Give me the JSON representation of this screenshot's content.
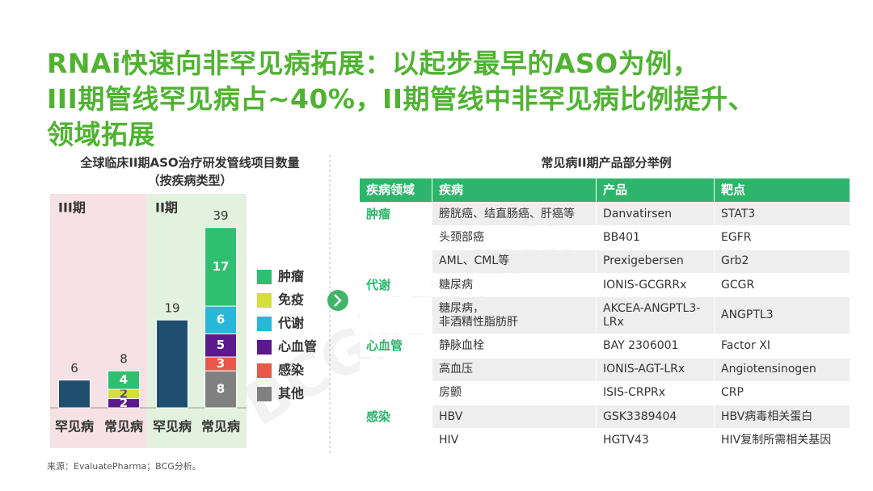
{
  "title_lines": [
    "RNAi快速向非罕见病拓展：以起步最早的ASO为例，",
    "III期管线罕见病占~40%，II期管线中非罕见病比例提升、",
    "领域拓展"
  ],
  "chart_data": {
    "type": "bar",
    "stacked": true,
    "title": "全球临床II期ASO治疗研发管线项目数量",
    "subtitle": "（按疾病类型）",
    "groups": [
      {
        "label": "III期",
        "color": "#f6e1e6"
      },
      {
        "label": "II期",
        "color": "#e3f2df"
      }
    ],
    "categories": [
      "罕见病",
      "常见病",
      "罕见病",
      "常见病"
    ],
    "ylim": [
      0,
      40
    ],
    "totals": [
      6,
      8,
      19,
      39
    ],
    "series": [
      {
        "color": "#1f4e6e",
        "values": [
          6,
          null,
          19,
          null
        ]
      },
      {
        "name": "其他",
        "color": "#808080",
        "values": [
          null,
          null,
          null,
          8
        ]
      },
      {
        "name": "感染",
        "color": "#e8574a",
        "values": [
          null,
          null,
          null,
          3
        ]
      },
      {
        "name": "心血管",
        "color": "#5b1a8c",
        "values": [
          null,
          2,
          null,
          5
        ]
      },
      {
        "name": "免疫",
        "color": "#d6df3a",
        "values": [
          null,
          2,
          null,
          null
        ]
      },
      {
        "name": "代谢",
        "color": "#27b8d8",
        "values": [
          null,
          null,
          null,
          6
        ]
      },
      {
        "name": "肿瘤",
        "color": "#2fbf71",
        "values": [
          null,
          4,
          null,
          17
        ]
      }
    ],
    "legend_order": [
      6,
      4,
      5,
      3,
      2,
      1
    ]
  },
  "table": {
    "title": "常见病II期产品部分举例",
    "header": [
      "疾病领域",
      "疾病",
      "产品",
      "靶点"
    ],
    "rows": [
      [
        "肿瘤",
        "膀胱癌、结直肠癌、肝癌等",
        "Danvatirsen",
        "STAT3"
      ],
      [
        null,
        "头颈部癌",
        "BB401",
        "EGFR"
      ],
      [
        null,
        "AML、CML等",
        "Prexigebersen",
        "Grb2"
      ],
      [
        "代谢",
        "糖尿病",
        "IONIS-GCGRRx",
        "GCGR"
      ],
      [
        null,
        "糖尿病，\n非酒精性脂肪肝",
        "AKCEA-ANGPTL3-\nLRx",
        "ANGPTL3"
      ],
      [
        "心血管",
        "静脉血栓",
        "BAY 2306001",
        "Factor XI"
      ],
      [
        null,
        "高血压",
        "IONIS-AGT-LRx",
        "Angiotensinogen"
      ],
      [
        null,
        "房颤",
        "ISIS-CRPRx",
        "CRP"
      ],
      [
        "感染",
        "HBV",
        "GSK3389404",
        "HBV病毒相关蛋白"
      ],
      [
        null,
        "HIV",
        "HGTV43",
        "HIV复制所需相关基因"
      ]
    ]
  },
  "footnote": "来源：EvaluatePharma；BCG分析。",
  "watermark": "BCG版权所有"
}
